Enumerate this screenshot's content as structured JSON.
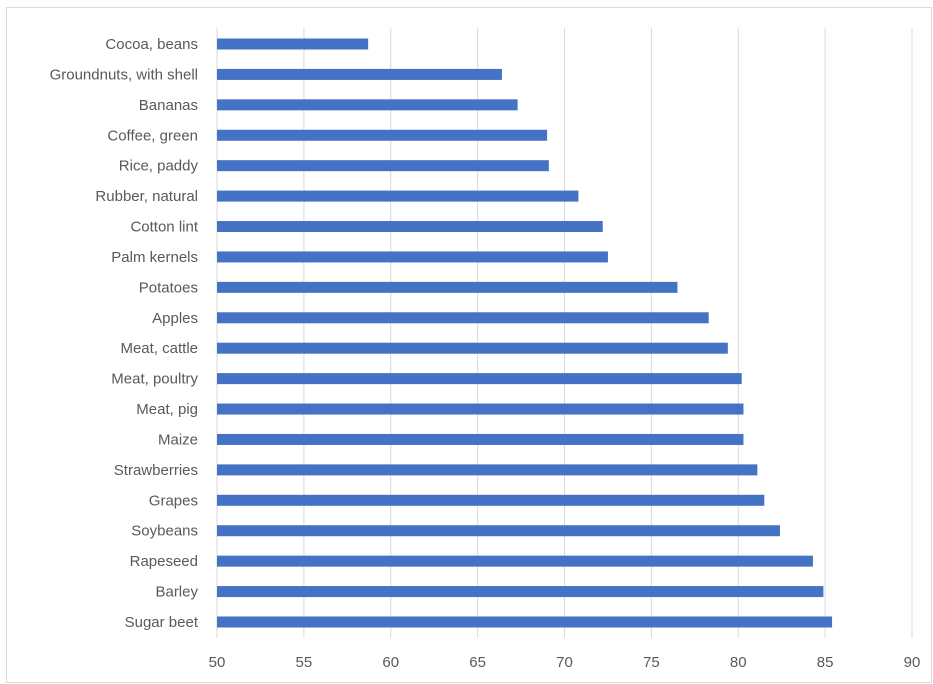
{
  "chart_data": {
    "type": "bar",
    "orientation": "horizontal",
    "title": "",
    "xlabel": "",
    "ylabel": "",
    "categories": [
      "Cocoa, beans",
      "Groundnuts, with shell",
      "Bananas",
      "Coffee, green",
      "Rice, paddy",
      "Rubber, natural",
      "Cotton lint",
      "Palm kernels",
      "Potatoes",
      "Apples",
      "Meat, cattle",
      "Meat, poultry",
      "Meat, pig",
      "Maize",
      "Strawberries",
      "Grapes",
      "Soybeans",
      "Rapeseed",
      "Barley",
      "Sugar beet"
    ],
    "values": [
      58.7,
      66.4,
      67.3,
      69.0,
      69.1,
      70.8,
      72.2,
      72.5,
      76.5,
      78.3,
      79.4,
      80.2,
      80.3,
      80.3,
      81.1,
      81.5,
      82.4,
      84.3,
      84.9,
      85.4
    ],
    "xlim": [
      50,
      90
    ],
    "ticks": [
      50,
      55,
      60,
      65,
      70,
      75,
      80,
      85,
      90
    ],
    "grid": true,
    "legend": "none",
    "colors": {
      "bar": "#4472c4",
      "grid": "#d9d9d9",
      "text": "#595959"
    }
  }
}
